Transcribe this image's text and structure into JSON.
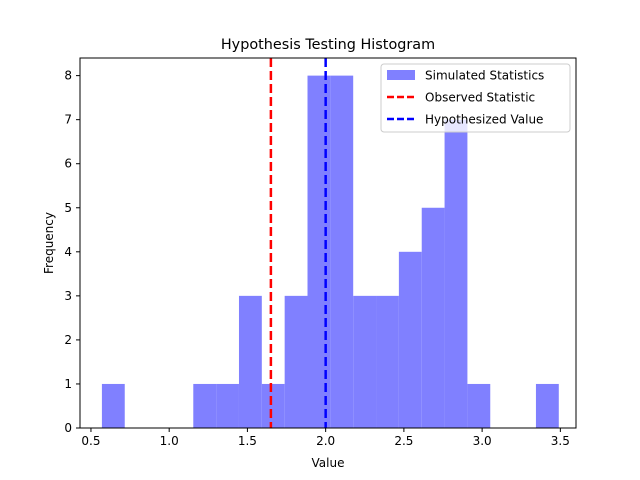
{
  "chart_data": {
    "type": "histogram",
    "title": "Hypothesis Testing Histogram",
    "xlabel": "Value",
    "ylabel": "Frequency",
    "xlim": [
      0.43,
      3.6
    ],
    "ylim": [
      0,
      8.4
    ],
    "xticks": [
      0.5,
      1.0,
      1.5,
      2.0,
      2.5,
      3.0,
      3.5
    ],
    "xtick_labels": [
      "0.5",
      "1.0",
      "1.5",
      "2.0",
      "2.5",
      "3.0",
      "3.5"
    ],
    "yticks": [
      0,
      1,
      2,
      3,
      4,
      5,
      6,
      7,
      8
    ],
    "ytick_labels": [
      "0",
      "1",
      "2",
      "3",
      "4",
      "5",
      "6",
      "7",
      "8"
    ],
    "bin_edges": [
      0.57,
      0.716,
      0.862,
      1.008,
      1.154,
      1.3,
      1.446,
      1.592,
      1.738,
      1.884,
      2.03,
      2.176,
      2.322,
      2.468,
      2.614,
      2.76,
      2.906,
      3.052,
      3.198,
      3.344,
      3.49
    ],
    "counts": [
      1,
      0,
      0,
      0,
      1,
      1,
      3,
      1,
      3,
      8,
      8,
      3,
      3,
      4,
      5,
      7,
      1,
      0,
      0,
      1
    ],
    "bar_color": "#8080ff",
    "series": [
      {
        "name": "Simulated Statistics",
        "kind": "bars",
        "color": "#8080ff"
      },
      {
        "name": "Observed Statistic",
        "kind": "vline",
        "x": 1.65,
        "color": "#ff0000",
        "style": "dashed"
      },
      {
        "name": "Hypothesized Value",
        "kind": "vline",
        "x": 2.0,
        "color": "#0000ff",
        "style": "dashed"
      }
    ],
    "legend": "top-right",
    "grid": false
  }
}
